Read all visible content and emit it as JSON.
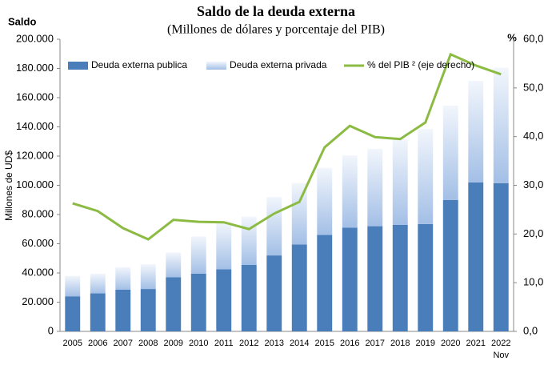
{
  "chart_data": {
    "type": "stacked-bar-line",
    "title": "Saldo de la deuda externa",
    "subtitle": "(Millones de dólares y porcentaje del PIB)",
    "y_header": "Saldo",
    "y2_header": "%",
    "y_label": "Millones de UD$",
    "categories": [
      "2005",
      "2006",
      "2007",
      "2008",
      "2009",
      "2010",
      "2011",
      "2012",
      "2013",
      "2014",
      "2015",
      "2016",
      "2017",
      "2018",
      "2019",
      "2020",
      "2021",
      "2022"
    ],
    "category_note": "Nov",
    "series": [
      {
        "name": "Deuda externa publica",
        "color": "#4a7ebb",
        "type": "bar",
        "values": [
          24000,
          26000,
          28500,
          29000,
          37000,
          39500,
          42500,
          45500,
          52000,
          59500,
          66000,
          71000,
          72000,
          73000,
          73500,
          90000,
          102000,
          101500
        ]
      },
      {
        "name": "Deuda externa privada",
        "color": "#a3bfe6",
        "type": "bar",
        "values": [
          14000,
          13500,
          15500,
          17000,
          17000,
          25500,
          32000,
          33000,
          40000,
          42000,
          46000,
          49500,
          53000,
          58500,
          65000,
          64500,
          69500,
          79000
        ]
      },
      {
        "name": "% del PIB ² (eje derecho)",
        "color": "#8cbb44",
        "type": "line",
        "axis": "y2",
        "values": [
          26.3,
          24.7,
          21.2,
          18.9,
          22.9,
          22.5,
          22.4,
          21.0,
          24.2,
          26.6,
          37.8,
          42.2,
          39.9,
          39.5,
          42.9,
          56.9,
          54.6,
          52.8
        ]
      }
    ],
    "ylim": [
      0,
      200000
    ],
    "yticks": [
      0,
      {
        "value": 20000,
        "label": "20.000"
      },
      {
        "value": 40000,
        "label": "40.000"
      },
      {
        "value": 60000,
        "label": "60.000"
      },
      {
        "value": 80000,
        "label": "80.000"
      },
      {
        "value": 100000,
        "label": "100.000"
      },
      {
        "value": 120000,
        "label": "120.000"
      },
      {
        "value": 140000,
        "label": "140.000"
      },
      {
        "value": 160000,
        "label": "160.000"
      },
      {
        "value": 180000,
        "label": "180.000"
      },
      {
        "value": 200000,
        "label": "200.000"
      }
    ],
    "y2lim": [
      0,
      60
    ],
    "y2ticks": [
      {
        "value": 0,
        "label": "0,0"
      },
      {
        "value": 10,
        "label": "10,0"
      },
      {
        "value": 20,
        "label": "20,0"
      },
      {
        "value": 30,
        "label": "30,0"
      },
      {
        "value": 40,
        "label": "40,0"
      },
      {
        "value": 50,
        "label": "50,0"
      },
      {
        "value": 60,
        "label": "60,0"
      }
    ],
    "grid": false,
    "legend": "top"
  }
}
